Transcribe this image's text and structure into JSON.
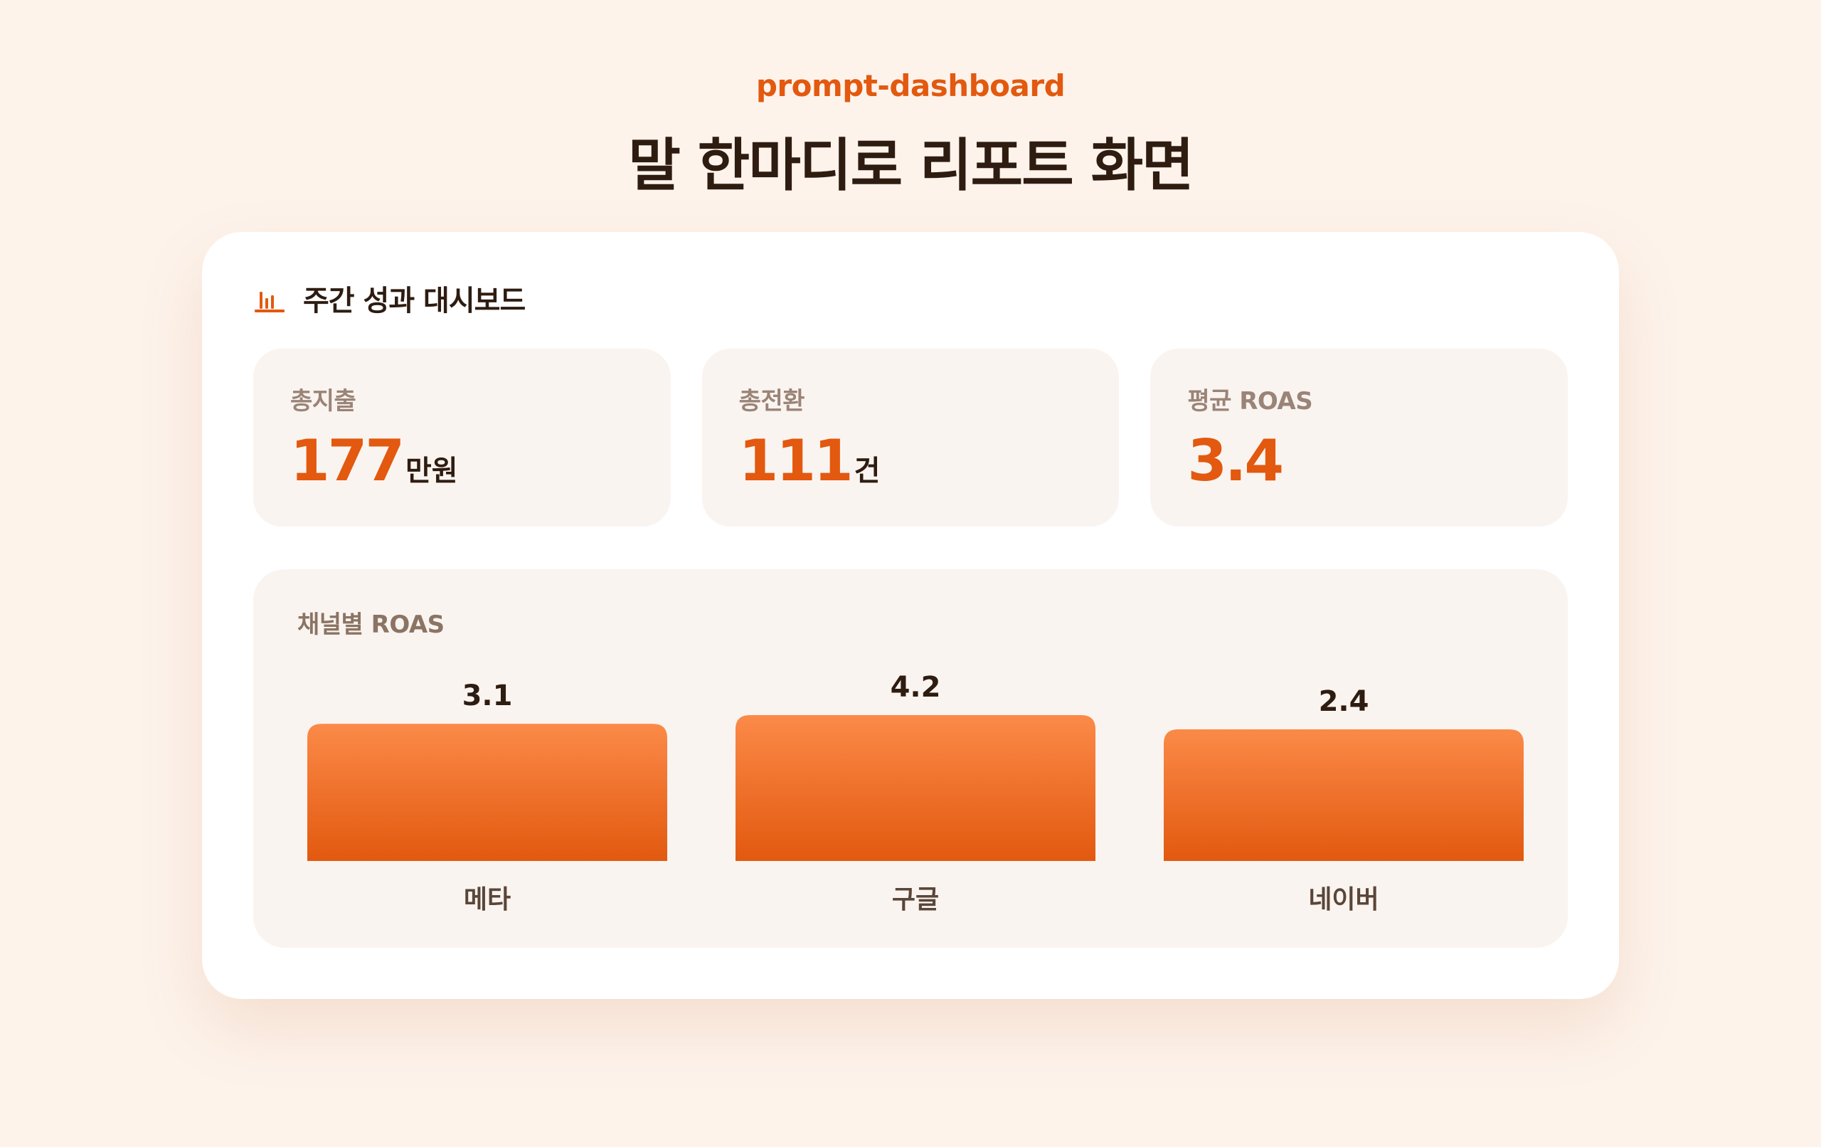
{
  "header": {
    "eyebrow": "prompt-dashboard",
    "title": "말 한마디로 리포트 화면"
  },
  "card": {
    "icon": "bar-chart-icon",
    "title": "주간 성과 대시보드"
  },
  "kpis": [
    {
      "label": "총지출",
      "value": "177",
      "unit": "만원"
    },
    {
      "label": "총전환",
      "value": "111",
      "unit": "건"
    },
    {
      "label": "평균 ROAS",
      "value": "3.4",
      "unit": ""
    }
  ],
  "colors": {
    "accent": "#e2590f",
    "bar_top": "#fb8a48",
    "bar_bottom": "#e2590f",
    "background": "#fdf3eb",
    "text_dark": "#2e1c11"
  },
  "chart_data": {
    "type": "bar",
    "title": "채널별 ROAS",
    "categories": [
      "메타",
      "구글",
      "네이버"
    ],
    "values": [
      3.1,
      4.2,
      2.4
    ],
    "data_labels": [
      "3.1",
      "4.2",
      "2.4"
    ],
    "grid": false,
    "legend": "none"
  }
}
